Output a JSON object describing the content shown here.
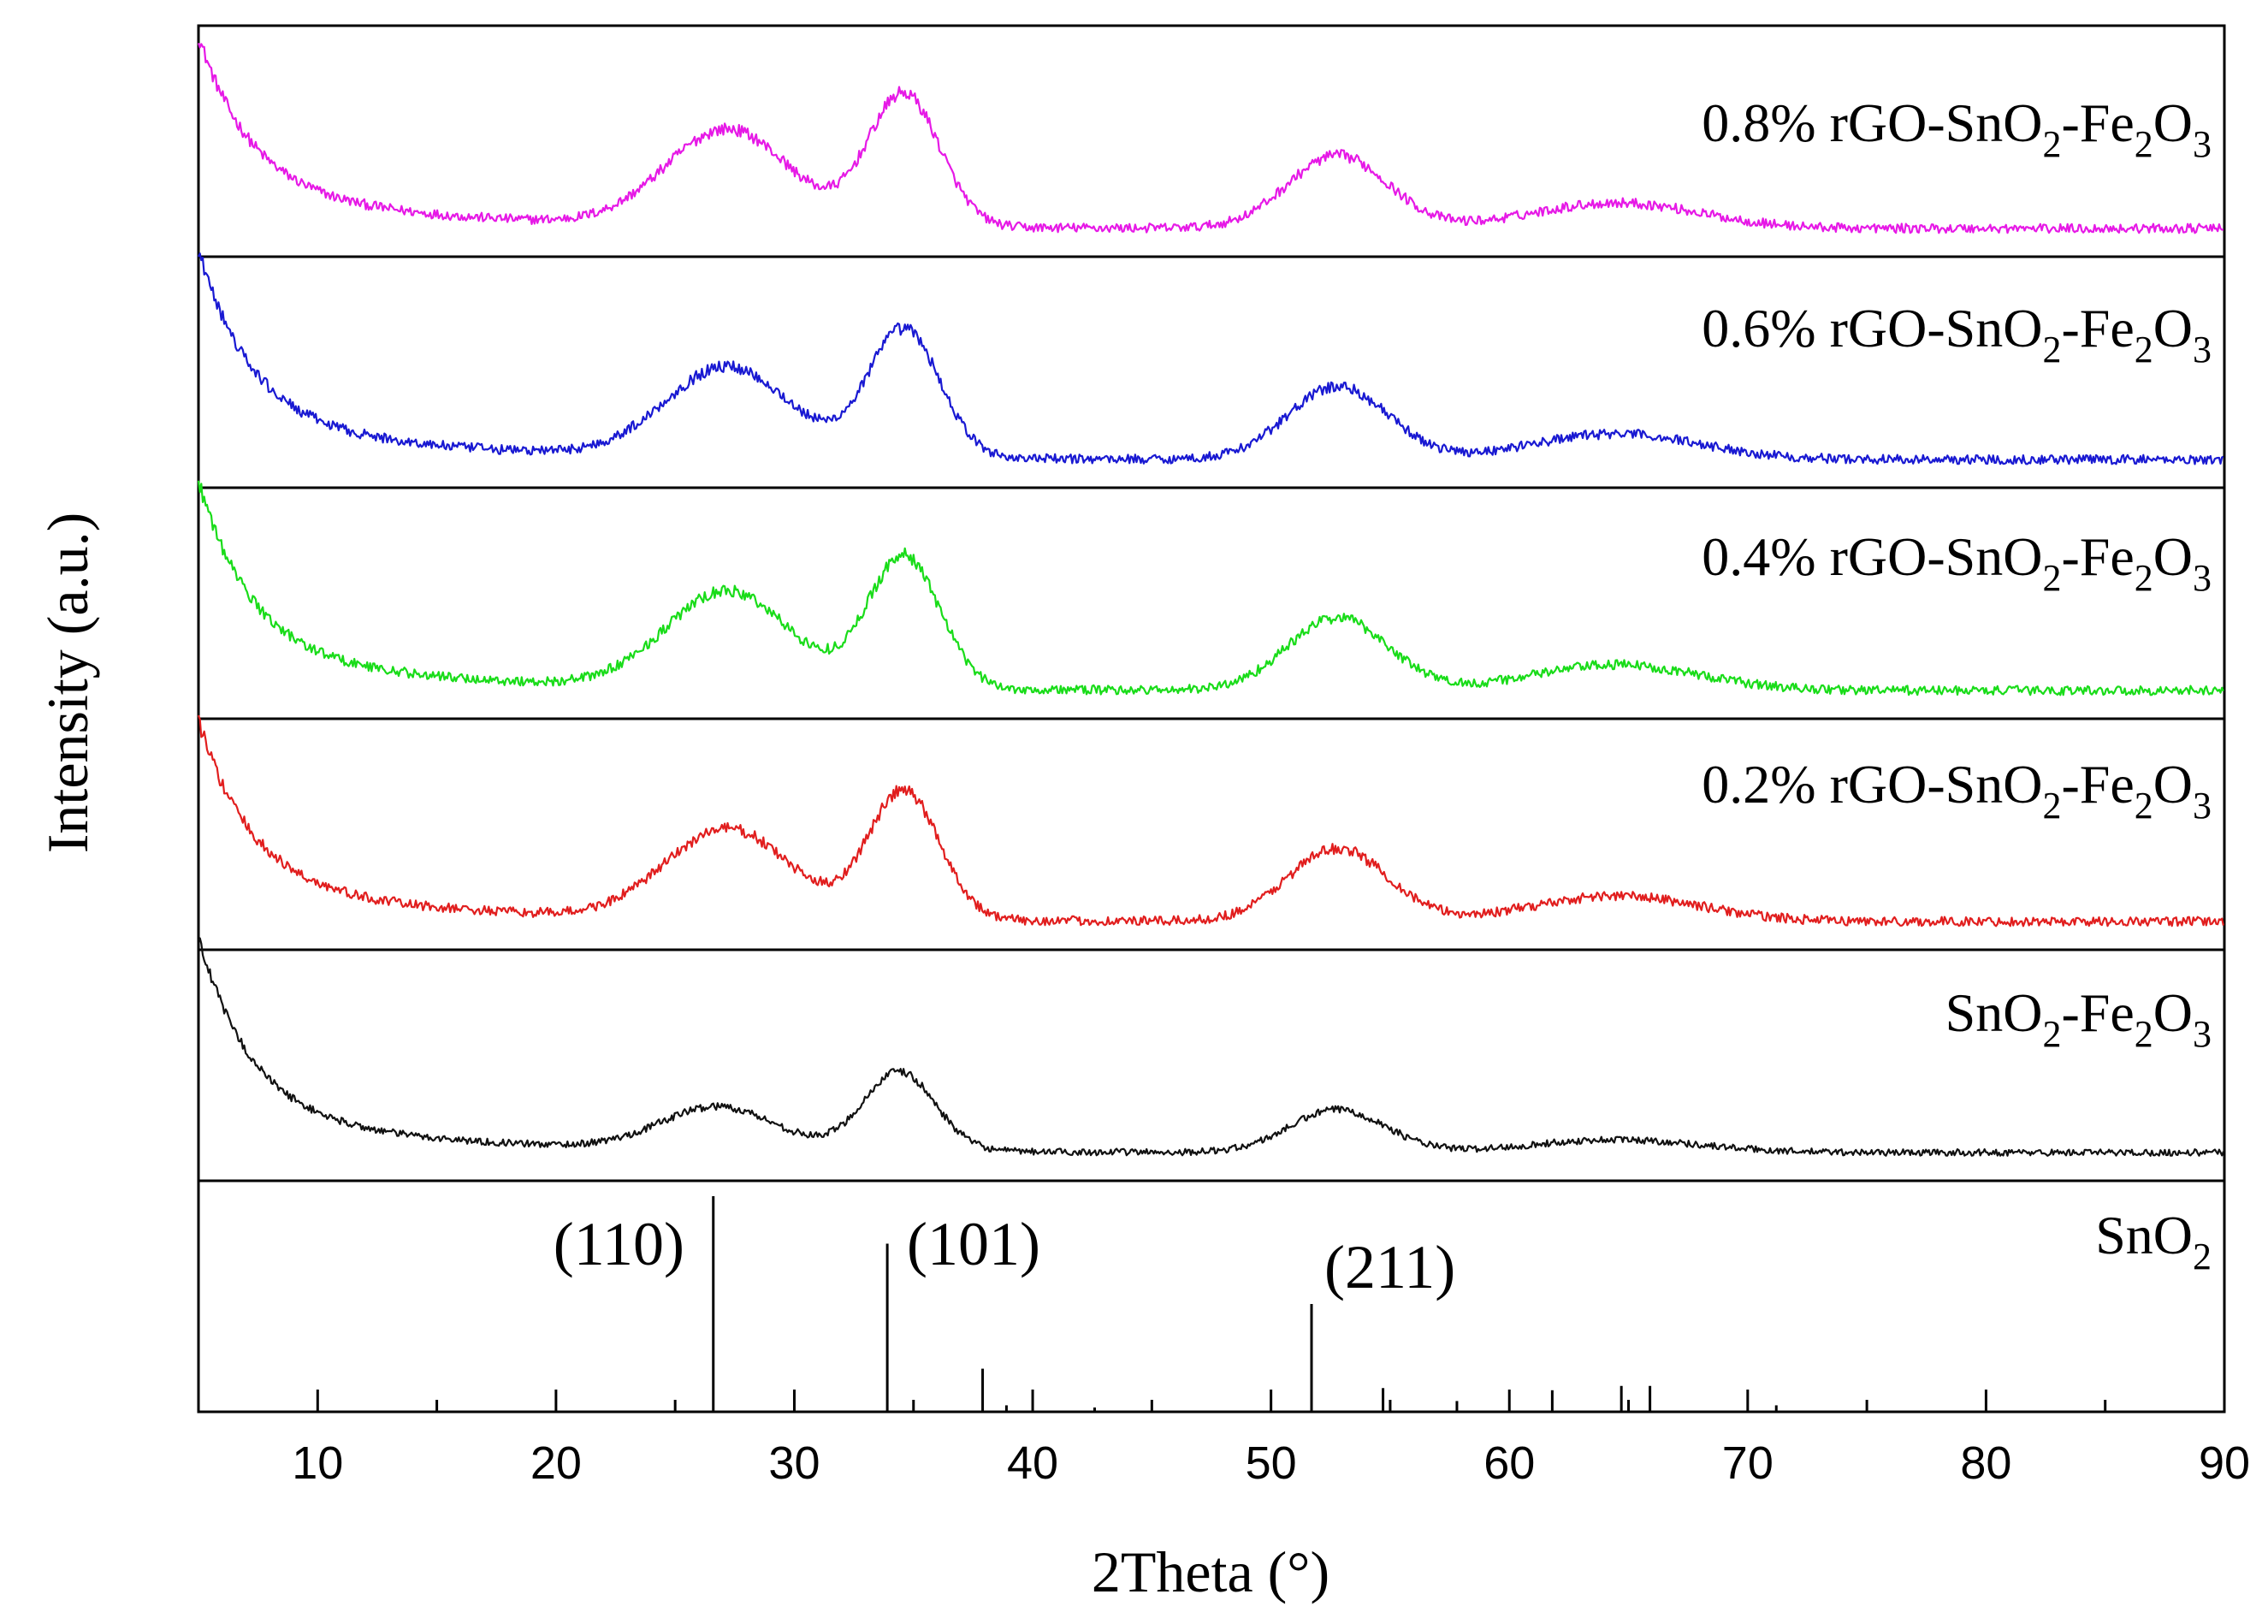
{
  "chart_data": {
    "type": "line",
    "title": "",
    "xlabel": "2Theta (°)",
    "ylabel": "Intensity (a.u.)",
    "xlim": [
      5,
      90
    ],
    "xticks": [
      10,
      20,
      30,
      40,
      50,
      60,
      70,
      80,
      90
    ],
    "minor_xtick_step": 5,
    "stacked_panels": true,
    "series": [
      {
        "name": "0.8% rGO-SnO2-Fe2O3",
        "label_parts": {
          "a": "0.8% rGO-SnO",
          "s1": "2",
          "b": "-Fe",
          "s2": "2",
          "c": "O",
          "s3": "3"
        },
        "color": "#e619e6",
        "profile": {
          "baseline": 0.1,
          "start_decay": 0.72,
          "noise": 0.025,
          "peaks": [
            {
              "x": 27.2,
              "h": 0.45,
              "w": 2.6
            },
            {
              "x": 34.6,
              "h": 0.62,
              "w": 1.5
            },
            {
              "x": 52.8,
              "h": 0.34,
              "w": 2.1
            },
            {
              "x": 64.5,
              "h": 0.12,
              "w": 3.5
            }
          ]
        }
      },
      {
        "name": "0.6% rGO-SnO2-Fe2O3",
        "label_parts": {
          "a": "0.6% rGO-SnO",
          "s1": "2",
          "b": "-Fe",
          "s2": "2",
          "c": "O",
          "s3": "3"
        },
        "color": "#1919d2",
        "profile": {
          "baseline": 0.1,
          "start_decay": 0.8,
          "noise": 0.025,
          "peaks": [
            {
              "x": 27.2,
              "h": 0.42,
              "w": 2.6
            },
            {
              "x": 34.6,
              "h": 0.6,
              "w": 1.5
            },
            {
              "x": 52.8,
              "h": 0.34,
              "w": 2.1
            },
            {
              "x": 64.5,
              "h": 0.12,
              "w": 3.5
            }
          ]
        }
      },
      {
        "name": "0.4% rGO-SnO2-Fe2O3",
        "label_parts": {
          "a": "0.4% rGO-SnO",
          "s1": "2",
          "b": "-Fe",
          "s2": "2",
          "c": "O",
          "s3": "3"
        },
        "color": "#19dc19",
        "profile": {
          "baseline": 0.1,
          "start_decay": 0.8,
          "noise": 0.025,
          "peaks": [
            {
              "x": 27.2,
              "h": 0.45,
              "w": 2.6
            },
            {
              "x": 34.6,
              "h": 0.62,
              "w": 1.5
            },
            {
              "x": 52.8,
              "h": 0.34,
              "w": 2.1
            },
            {
              "x": 64.5,
              "h": 0.12,
              "w": 3.5
            }
          ]
        }
      },
      {
        "name": "0.2% rGO-SnO2-Fe2O3",
        "label_parts": {
          "a": "0.2% rGO-SnO",
          "s1": "2",
          "b": "-Fe",
          "s2": "2",
          "c": "O",
          "s3": "3"
        },
        "color": "#e11e1e",
        "profile": {
          "baseline": 0.1,
          "start_decay": 0.76,
          "noise": 0.025,
          "peaks": [
            {
              "x": 27.2,
              "h": 0.42,
              "w": 2.6
            },
            {
              "x": 34.6,
              "h": 0.6,
              "w": 1.5
            },
            {
              "x": 52.8,
              "h": 0.34,
              "w": 2.1
            },
            {
              "x": 64.5,
              "h": 0.12,
              "w": 3.5
            }
          ]
        }
      },
      {
        "name": "SnO2-Fe2O3",
        "label_parts": {
          "a": "SnO",
          "s1": "2",
          "b": "-Fe",
          "s2": "2",
          "c": "O",
          "s3": "3"
        },
        "color": "#111111",
        "profile": {
          "baseline": 0.1,
          "start_decay": 0.83,
          "noise": 0.018,
          "peaks": [
            {
              "x": 26.8,
              "h": 0.2,
              "w": 2.4
            },
            {
              "x": 34.4,
              "h": 0.37,
              "w": 1.5
            },
            {
              "x": 52.8,
              "h": 0.2,
              "w": 2.0
            },
            {
              "x": 64.5,
              "h": 0.06,
              "w": 3.5
            }
          ]
        }
      }
    ],
    "reference": {
      "name": "SnO2",
      "label_parts": {
        "a": "SnO",
        "s1": "2"
      },
      "color": "#000000",
      "ymax": 1.0,
      "lines": [
        {
          "x": 26.6,
          "h": 1.0,
          "label": "(110)"
        },
        {
          "x": 33.9,
          "h": 0.78,
          "label": "(101)"
        },
        {
          "x": 37.9,
          "h": 0.2
        },
        {
          "x": 38.9,
          "h": 0.03
        },
        {
          "x": 42.6,
          "h": 0.02
        },
        {
          "x": 51.7,
          "h": 0.5,
          "label": "(211)"
        },
        {
          "x": 54.7,
          "h": 0.11
        },
        {
          "x": 57.8,
          "h": 0.05
        },
        {
          "x": 61.8,
          "h": 0.1
        },
        {
          "x": 64.7,
          "h": 0.12
        },
        {
          "x": 65.9,
          "h": 0.12
        },
        {
          "x": 71.2,
          "h": 0.03
        }
      ]
    }
  }
}
